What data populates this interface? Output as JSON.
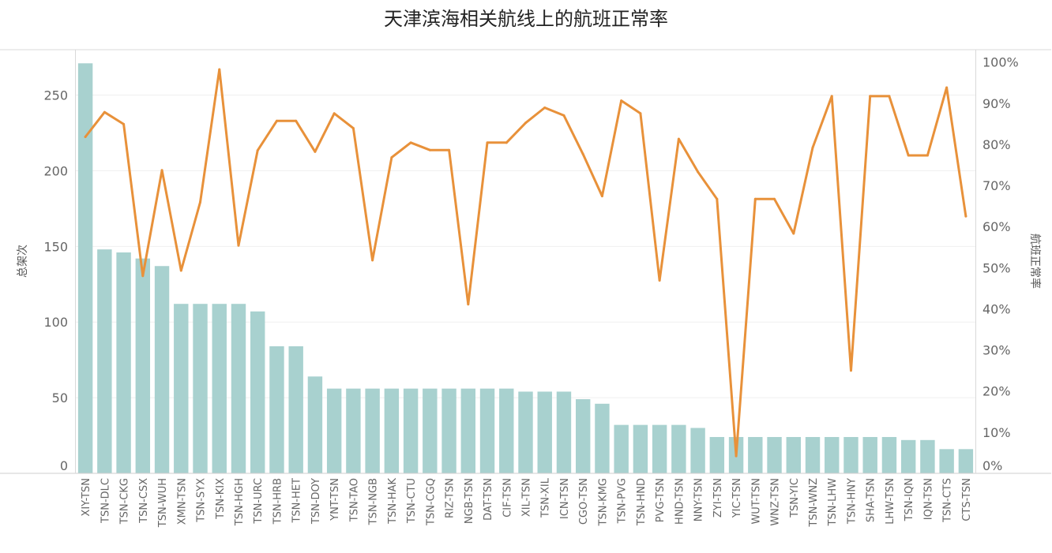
{
  "chart_data": {
    "type": "bar",
    "title": "天津滨海相关航线上的航班正常率",
    "categories": [
      "XIY-TSN",
      "TSN-DLC",
      "TSN-CKG",
      "TSN-CSX",
      "TSN-WUH",
      "XMN-TSN",
      "TSN-SYX",
      "TSN-KIX",
      "TSN-HGH",
      "TSN-URC",
      "TSN-HRB",
      "TSN-HET",
      "TSN-DOY",
      "YNT-TSN",
      "TSN-TAO",
      "TSN-NGB",
      "TSN-HAK",
      "TSN-CTU",
      "TSN-CGQ",
      "RIZ-TSN",
      "NGB-TSN",
      "DAT-TSN",
      "CIF-TSN",
      "XIL-TSN",
      "TSN-XIL",
      "ICN-TSN",
      "CGO-TSN",
      "TSN-KMG",
      "TSN-PVG",
      "TSN-HND",
      "PVG-TSN",
      "HND-TSN",
      "NNY-TSN",
      "ZYI-TSN",
      "YIC-TSN",
      "WUT-TSN",
      "WNZ-TSN",
      "TSN-YIC",
      "TSN-WNZ",
      "TSN-LHW",
      "TSN-HNY",
      "SHA-TSN",
      "LHW-TSN",
      "TSN-IQN",
      "IQN-TSN",
      "TSN-CTS",
      "CTS-TSN"
    ],
    "series": [
      {
        "name": "总架次",
        "type": "bar",
        "axis": "left",
        "color": "#a8d1cf",
        "values": [
          271,
          148,
          146,
          142,
          137,
          112,
          112,
          112,
          112,
          107,
          84,
          84,
          64,
          56,
          56,
          56,
          56,
          56,
          56,
          56,
          56,
          56,
          56,
          54,
          54,
          54,
          49,
          46,
          32,
          32,
          32,
          32,
          30,
          24,
          24,
          24,
          24,
          24,
          24,
          24,
          24,
          24,
          24,
          22,
          22,
          16,
          16
        ]
      },
      {
        "name": "航班正常率",
        "type": "line",
        "axis": "right",
        "color": "#e8913a",
        "values": [
          81.8,
          87.8,
          84.9,
          48.0,
          73.7,
          49.3,
          65.9,
          98.2,
          55.4,
          78.5,
          85.7,
          85.7,
          78.2,
          87.5,
          83.9,
          51.8,
          76.8,
          80.4,
          78.6,
          78.6,
          41.1,
          80.4,
          80.4,
          85.2,
          88.9,
          87.0,
          77.6,
          67.4,
          90.6,
          87.5,
          46.9,
          81.3,
          73.3,
          66.7,
          4.2,
          66.7,
          66.7,
          58.3,
          79.2,
          91.7,
          25.0,
          91.7,
          91.7,
          77.3,
          77.3,
          93.8,
          62.5
        ]
      }
    ],
    "ylabel_left": "总架次",
    "ylabel_right": "航班正常率",
    "ylim_left": [
      0,
      280
    ],
    "ylim_right": [
      0,
      103
    ],
    "left_ticks": [
      "0",
      "50",
      "100",
      "150",
      "200",
      "250"
    ],
    "right_ticks": [
      "0%",
      "10%",
      "20%",
      "30%",
      "40%",
      "50%",
      "60%",
      "70%",
      "80%",
      "90%",
      "100%"
    ],
    "grid": true
  }
}
